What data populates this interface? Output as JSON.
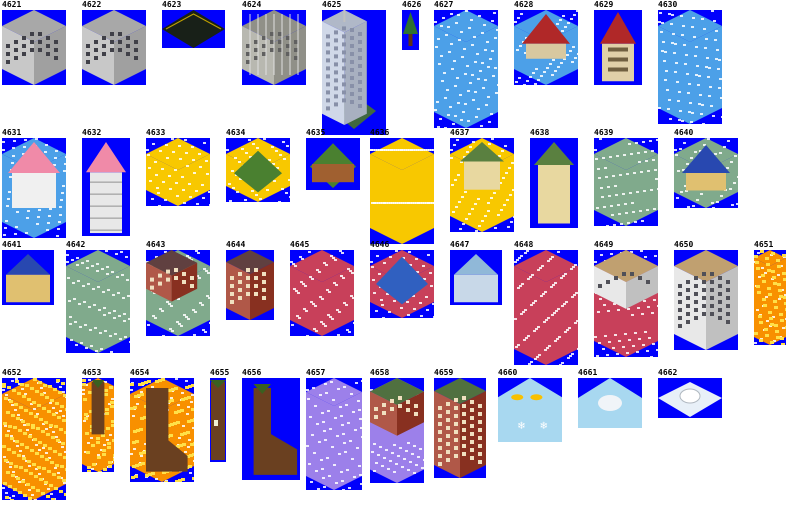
{
  "palette": {
    "background": "#0000fc",
    "label": "#000000",
    "white": "#ffffff",
    "snow_blue": "#4aa0e8",
    "yellow": "#f8c800",
    "green_grey": "#7aa888",
    "red_pink": "#c8405a",
    "purple": "#9c7ce8",
    "lava": "#f89000"
  },
  "sprites": [
    {
      "id": "4621",
      "kind": "office-grey"
    },
    {
      "id": "4622",
      "kind": "office-grey"
    },
    {
      "id": "4623",
      "kind": "flat-dark"
    },
    {
      "id": "4624",
      "kind": "construction"
    },
    {
      "id": "4625",
      "kind": "skyscraper"
    },
    {
      "id": "4626",
      "kind": "tree"
    },
    {
      "id": "4627",
      "kind": "cube-snow"
    },
    {
      "id": "4628",
      "kind": "red-roof-snow"
    },
    {
      "id": "4629",
      "kind": "red-roof-house"
    },
    {
      "id": "4630",
      "kind": "cube-snow"
    },
    {
      "id": "4631",
      "kind": "pink-tower-snow"
    },
    {
      "id": "4632",
      "kind": "pink-tower"
    },
    {
      "id": "4633",
      "kind": "cube-yellow"
    },
    {
      "id": "4634",
      "kind": "green-farm-yellow"
    },
    {
      "id": "4635",
      "kind": "green-farm"
    },
    {
      "id": "4636",
      "kind": "cube-yellow"
    },
    {
      "id": "4637",
      "kind": "green-dome-yellow"
    },
    {
      "id": "4638",
      "kind": "green-dome"
    },
    {
      "id": "4639",
      "kind": "cube-green"
    },
    {
      "id": "4640",
      "kind": "blue-house-green"
    },
    {
      "id": "4641",
      "kind": "blue-house"
    },
    {
      "id": "4642",
      "kind": "cube-green"
    },
    {
      "id": "4643",
      "kind": "brick-green"
    },
    {
      "id": "4644",
      "kind": "brick-house"
    },
    {
      "id": "4645",
      "kind": "cube-red"
    },
    {
      "id": "4646",
      "kind": "blue-roof-red"
    },
    {
      "id": "4647",
      "kind": "pale-house"
    },
    {
      "id": "4648",
      "kind": "cube-red"
    },
    {
      "id": "4649",
      "kind": "office-red"
    },
    {
      "id": "4650",
      "kind": "office-tan"
    },
    {
      "id": "4651",
      "kind": "cube-lava"
    },
    {
      "id": "4652",
      "kind": "cube-lava"
    },
    {
      "id": "4653",
      "kind": "boot-lava"
    },
    {
      "id": "4654",
      "kind": "boot-lava-big"
    },
    {
      "id": "4655",
      "kind": "boot"
    },
    {
      "id": "4656",
      "kind": "boot-big"
    },
    {
      "id": "4657",
      "kind": "cube-purple"
    },
    {
      "id": "4658",
      "kind": "brick-purple"
    },
    {
      "id": "4659",
      "kind": "brick-tower"
    },
    {
      "id": "4660",
      "kind": "ice-flat"
    },
    {
      "id": "4661",
      "kind": "igloo-ice"
    },
    {
      "id": "4662",
      "kind": "igloo"
    }
  ]
}
